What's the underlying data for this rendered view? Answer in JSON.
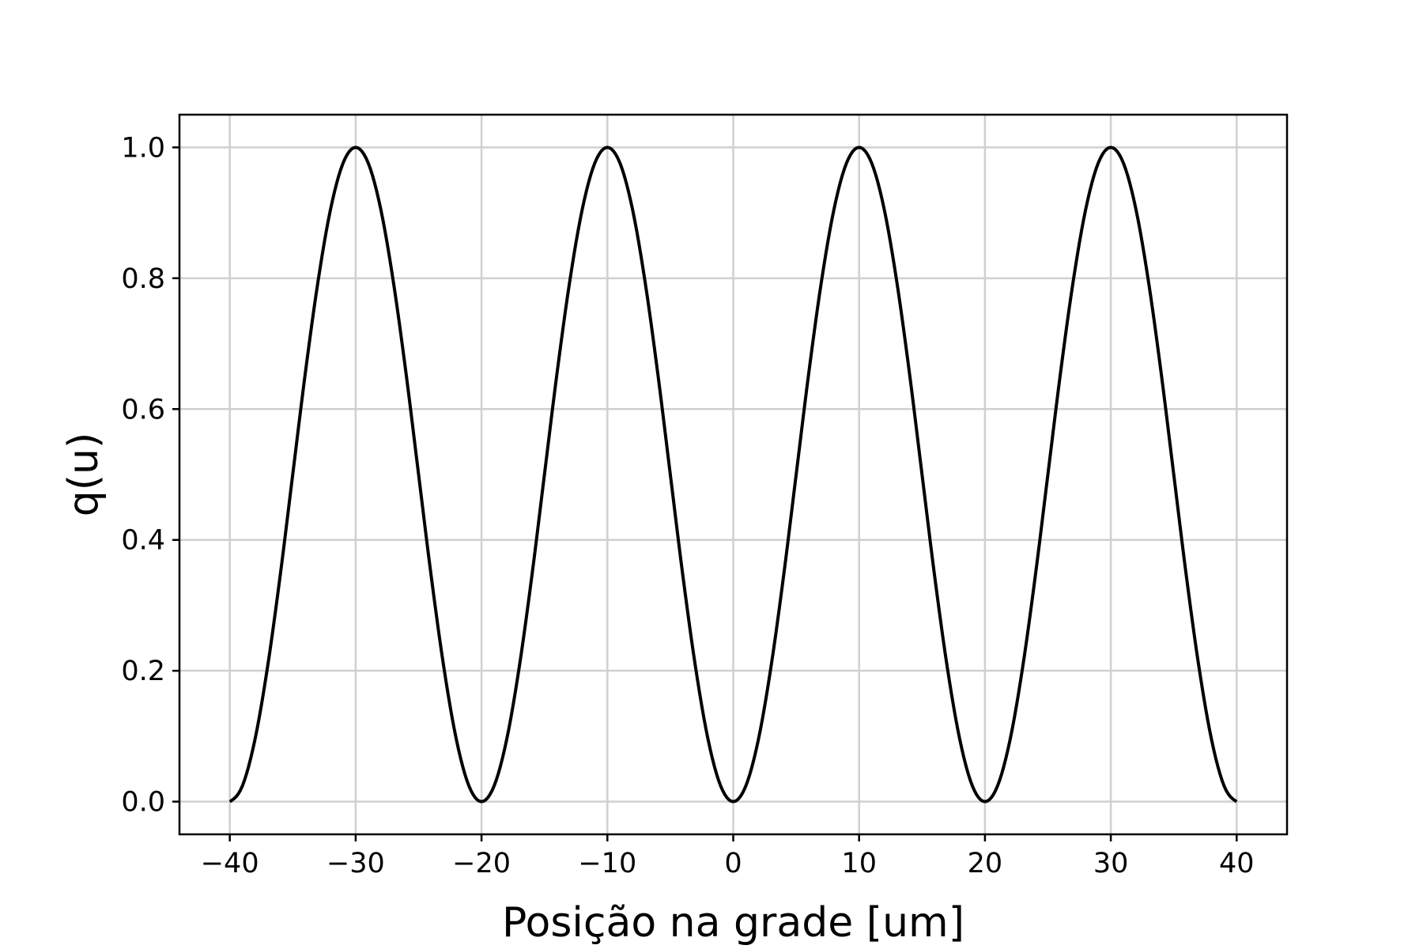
{
  "chart_data": {
    "type": "line",
    "title": "",
    "xlabel": "Posição na grade [um]",
    "ylabel": "q(u)",
    "xlim": [
      -44,
      44
    ],
    "ylim": [
      -0.05,
      1.05
    ],
    "x_ticks": [
      -40,
      -30,
      -20,
      -10,
      0,
      10,
      20,
      30,
      40
    ],
    "x_tick_labels": [
      "−40",
      "−30",
      "−20",
      "−10",
      "0",
      "10",
      "20",
      "30",
      "40"
    ],
    "y_ticks": [
      0.0,
      0.2,
      0.4,
      0.6,
      0.8,
      1.0
    ],
    "y_tick_labels": [
      "0.0",
      "0.2",
      "0.4",
      "0.6",
      "0.8",
      "1.0"
    ],
    "grid": true,
    "series": [
      {
        "color": "#000000",
        "x": [
          -40,
          -39,
          -38,
          -37,
          -36,
          -35,
          -34,
          -33,
          -32,
          -31,
          -30,
          -29,
          -28,
          -27,
          -26,
          -25,
          -24,
          -23,
          -22,
          -21,
          -20,
          -19,
          -18,
          -17,
          -16,
          -15,
          -14,
          -13,
          -12,
          -11,
          -10,
          -9,
          -8,
          -7,
          -6,
          -5,
          -4,
          -3,
          -2,
          -1,
          0,
          1,
          2,
          3,
          4,
          5,
          6,
          7,
          8,
          9,
          10,
          11,
          12,
          13,
          14,
          15,
          16,
          17,
          18,
          19,
          20,
          21,
          22,
          23,
          24,
          25,
          26,
          27,
          28,
          29,
          30,
          31,
          32,
          33,
          34,
          35,
          36,
          37,
          38,
          39,
          40
        ],
        "y": [
          0.0,
          0.024,
          0.095,
          0.206,
          0.345,
          0.5,
          0.655,
          0.794,
          0.905,
          0.976,
          1.0,
          0.976,
          0.905,
          0.794,
          0.655,
          0.5,
          0.345,
          0.206,
          0.095,
          0.024,
          0.0,
          0.024,
          0.095,
          0.206,
          0.345,
          0.5,
          0.655,
          0.794,
          0.905,
          0.976,
          1.0,
          0.976,
          0.905,
          0.794,
          0.655,
          0.5,
          0.345,
          0.206,
          0.095,
          0.024,
          0.0,
          0.024,
          0.095,
          0.206,
          0.345,
          0.5,
          0.655,
          0.794,
          0.905,
          0.976,
          1.0,
          0.976,
          0.905,
          0.794,
          0.655,
          0.5,
          0.345,
          0.206,
          0.095,
          0.024,
          0.0,
          0.024,
          0.095,
          0.206,
          0.345,
          0.5,
          0.655,
          0.794,
          0.905,
          0.976,
          1.0,
          0.976,
          0.905,
          0.794,
          0.655,
          0.5,
          0.345,
          0.206,
          0.095,
          0.024,
          0.0
        ]
      }
    ]
  }
}
